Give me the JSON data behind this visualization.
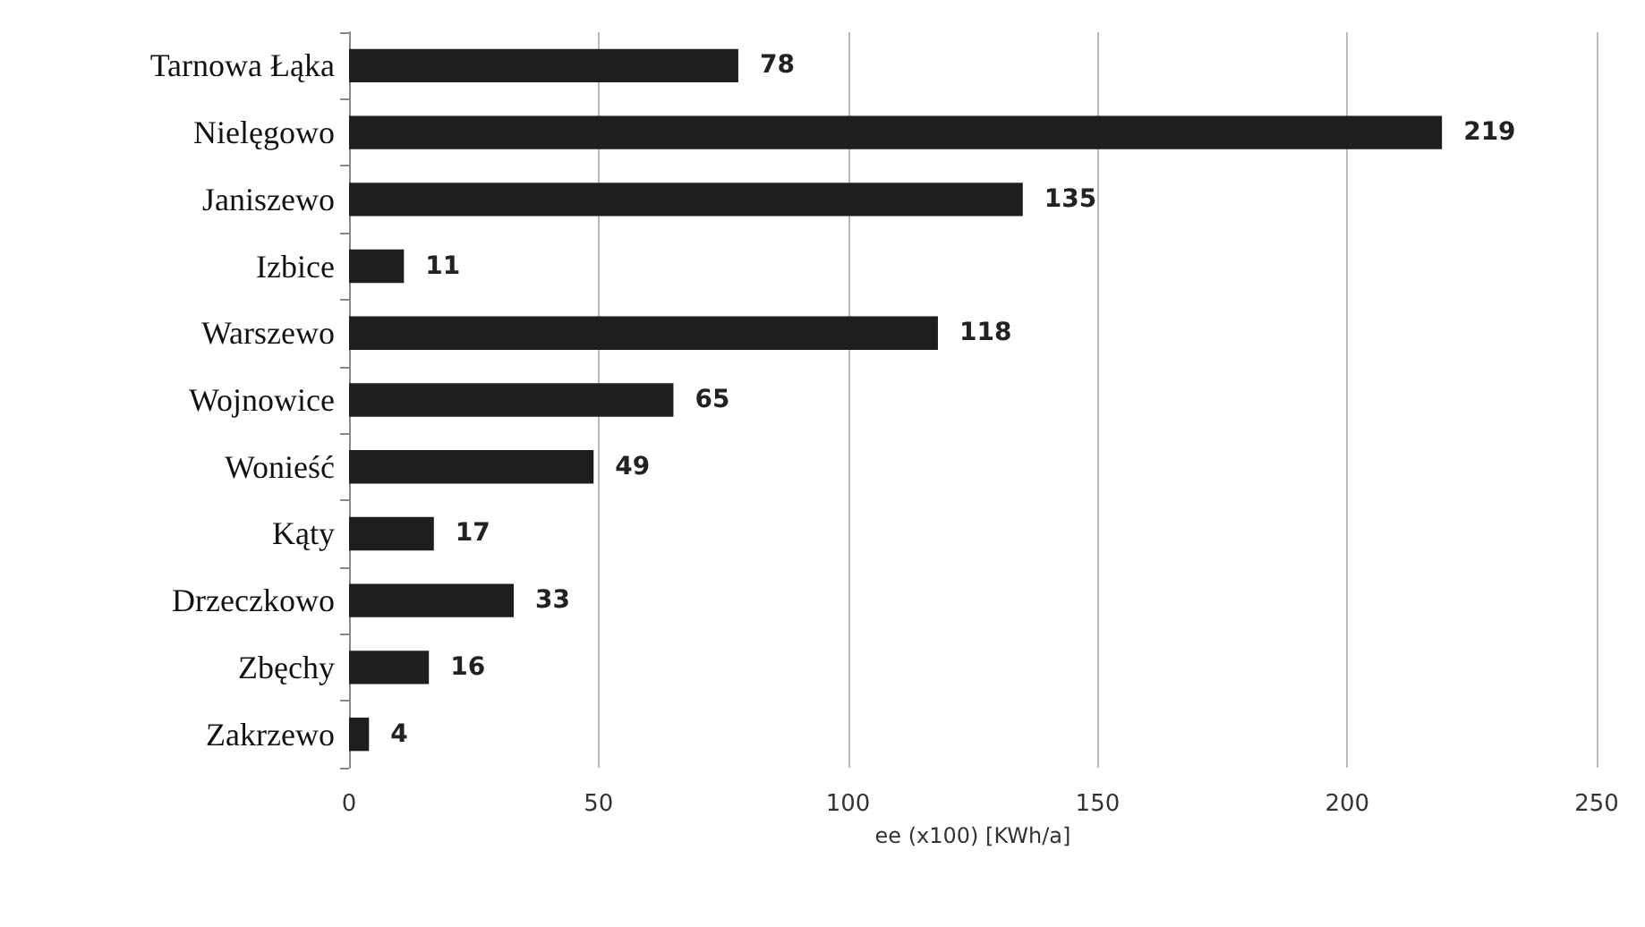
{
  "chart_data": {
    "type": "bar",
    "orientation": "horizontal",
    "xlabel": "ee (x100) [KWh/a]",
    "categories": [
      "Tarnowa Łąka",
      "Nielęgowo",
      "Janiszewo",
      "Izbice",
      "Warszewo",
      "Wojnowice",
      "Wonieść",
      "Kąty",
      "Drzeczkowo",
      "Zbęchy",
      "Zakrzewo"
    ],
    "values": [
      78,
      219,
      135,
      11,
      118,
      65,
      49,
      17,
      33,
      16,
      4
    ],
    "color": "#1e1e1e",
    "xlim": [
      0,
      250
    ],
    "xticks": [
      0,
      50,
      100,
      150,
      200,
      250
    ],
    "grid": "x",
    "data_labels": true
  }
}
